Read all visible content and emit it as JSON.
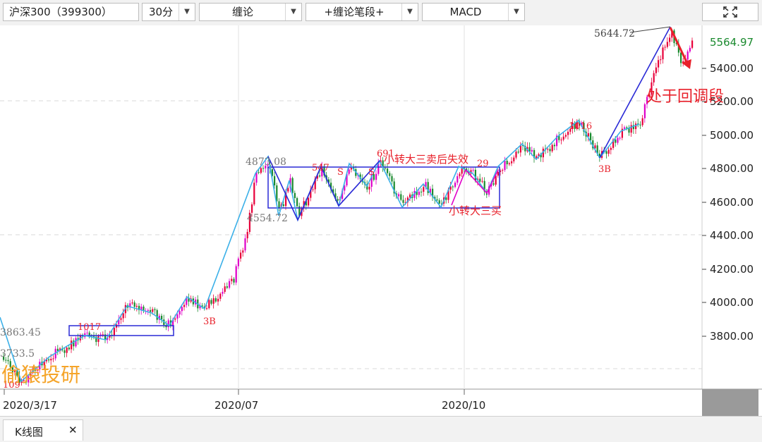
{
  "toolbar": {
    "symbol": "沪深300（399300）",
    "period": "30分",
    "indicator_main": "缠论",
    "indicator_overlay": "+缠论笔段+",
    "indicator_sub": "MACD",
    "expand_icon": "expand-arrows-icon"
  },
  "axis": {
    "y_ticks": [
      "5400.00",
      "5200.00",
      "5000.00",
      "4800.00",
      "4600.00",
      "4400.00",
      "4200.00",
      "4000.00",
      "3800.00"
    ],
    "x_ticks": [
      "2020/3/17",
      "2020/07",
      "2020/10"
    ],
    "current_price": "5564.97"
  },
  "annotations": {
    "high_label": "5644.72",
    "return_segment": "处于回调段",
    "label_3b_early": "3B",
    "label_3b_late": "3B",
    "sell_note": "小转大三卖后失效",
    "buy_note": "小转大三买",
    "left_3863": "3863.45",
    "left_3733": "3733.5",
    "left_3109": "109",
    "small_1017": "1017",
    "mid_4873": "4873.08",
    "mid_4554": "4554.72",
    "mid_547": "547",
    "mid_s1": "S",
    "mid_s2": "S",
    "mid_691": "691",
    "mid_29": "29",
    "right_1016": "1016"
  },
  "watermark": "偷猿投研",
  "tabs": [
    {
      "label": "K线图",
      "close": "✕"
    }
  ],
  "colors": {
    "up": "#e8003a",
    "down": "#1a8a2e",
    "bi_line": "#3bb0e8",
    "segment_line": "#2a2ad6",
    "pivot_box": "#2a2ad6",
    "magenta": "#e000c8",
    "current_price": "#1a8a2e"
  },
  "chart_data": {
    "type": "candlestick",
    "title": "",
    "ylim": [
      3550,
      5700
    ],
    "key_points": [
      {
        "label": "low",
        "value": 3500
      },
      {
        "label": "high",
        "value": 5644.72
      },
      {
        "label": "last",
        "value": 5564.97
      }
    ]
  }
}
